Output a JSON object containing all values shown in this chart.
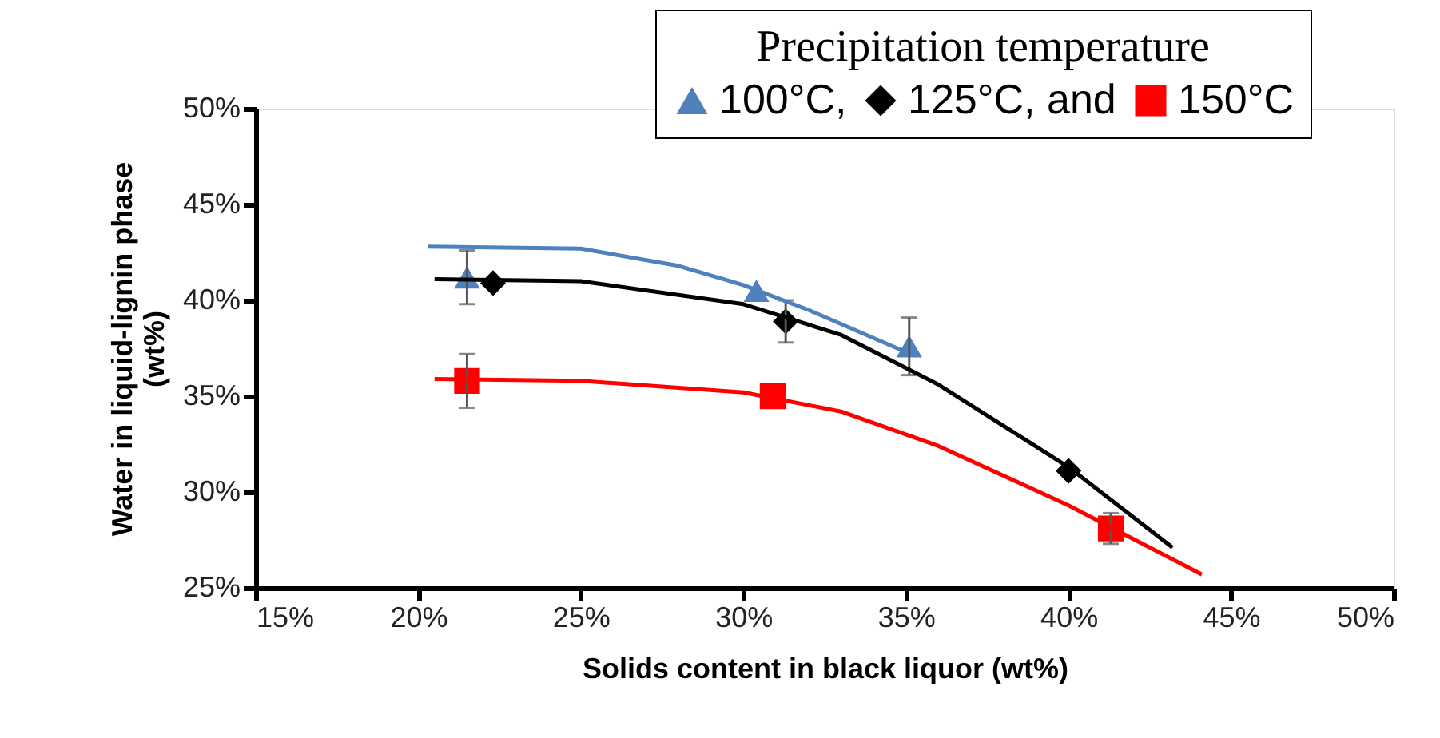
{
  "chart_data": {
    "type": "scatter",
    "xlabel": "Solids content in black liquor (wt%)",
    "ylabel": "Water in liquid-lignin phase (wt%)",
    "legend_title": "Precipitation temperature",
    "legend": "top right",
    "grid": false,
    "xlim": [
      15,
      50
    ],
    "xticks": [
      {
        "value": 15,
        "label": "15%"
      },
      {
        "value": 20,
        "label": "20%"
      },
      {
        "value": 25,
        "label": "25%"
      },
      {
        "value": 30,
        "label": "30%"
      },
      {
        "value": 35,
        "label": "35%"
      },
      {
        "value": 40,
        "label": "40%"
      },
      {
        "value": 45,
        "label": "45%"
      },
      {
        "value": 50,
        "label": "50%"
      }
    ],
    "ylim": [
      25,
      50
    ],
    "yticks": [
      {
        "value": 25,
        "label": "25%"
      },
      {
        "value": 30,
        "label": "30%"
      },
      {
        "value": 35,
        "label": "35%"
      },
      {
        "value": 40,
        "label": "40%"
      },
      {
        "value": 45,
        "label": "45%"
      },
      {
        "value": 50,
        "label": "50%"
      }
    ],
    "series": [
      {
        "name": "100°C,",
        "marker": "triangle",
        "color": "#4f81bd",
        "x": [
          21.5,
          30.4,
          35.1
        ],
        "values": [
          41.2,
          40.5,
          37.6
        ],
        "errors": [
          1.4,
          null,
          1.5
        ]
      },
      {
        "name": "125°C, and",
        "marker": "diamond",
        "color": "#000000",
        "x": [
          22.3,
          31.3,
          40.0
        ],
        "values": [
          40.9,
          38.9,
          31.1
        ],
        "errors": [
          null,
          1.1,
          null
        ]
      },
      {
        "name": "150°C",
        "marker": "square",
        "color": "#ff0000",
        "x": [
          21.5,
          30.9,
          41.3
        ],
        "values": [
          35.8,
          35.0,
          28.1
        ],
        "errors": [
          1.4,
          null,
          0.8
        ]
      },
      {
        "type": "line",
        "color": "#4f81bd",
        "x": [
          20.3,
          25,
          28,
          30,
          32,
          35
        ],
        "values": [
          42.8,
          42.7,
          41.8,
          40.8,
          39.5,
          37.3
        ]
      },
      {
        "type": "line",
        "color": "#000000",
        "x": [
          20.5,
          25,
          30,
          33,
          36,
          40,
          43.2
        ],
        "values": [
          41.1,
          41.0,
          39.8,
          38.2,
          35.6,
          31.3,
          27.1
        ]
      },
      {
        "type": "line",
        "color": "#ff0000",
        "x": [
          20.5,
          25,
          30,
          33,
          36,
          40,
          44.1
        ],
        "values": [
          35.9,
          35.8,
          35.2,
          34.2,
          32.4,
          29.3,
          25.7
        ]
      }
    ]
  }
}
